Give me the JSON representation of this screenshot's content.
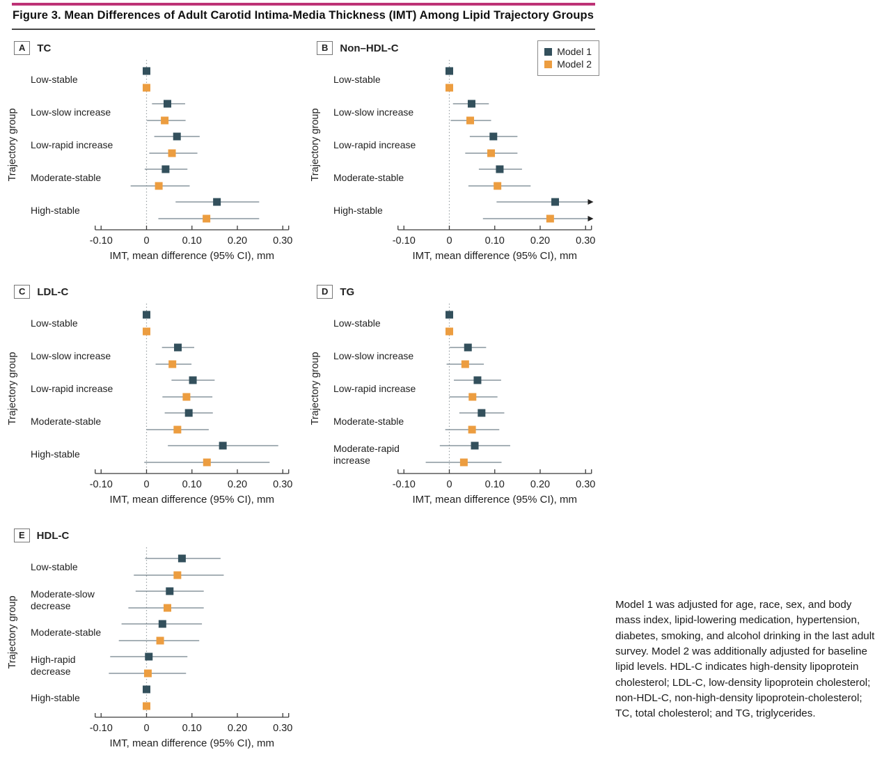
{
  "figure": {
    "title": "Figure 3. Mean Differences of Adult Carotid Intima-Media Thickness (IMT) Among Lipid Trajectory Groups",
    "caption": "Model 1 was adjusted for age, race, sex, and body mass index, lipid-lowering medication, hypertension, diabetes, smoking, and alcohol drinking in the last adult survey. Model 2 was additionally adjusted for baseline lipid levels. HDL-C indicates high-density lipoprotein cholesterol; LDL-C, low-density lipoprotein cholesterol; non-HDL-C, non-high-density lipoprotein-cholesterol; TC, total cholesterol; and TG, triglycerides.",
    "accent_color": "#bd3276"
  },
  "legend": {
    "items": [
      {
        "label": "Model 1",
        "color": "#33505c"
      },
      {
        "label": "Model 2",
        "color": "#ec9d40"
      }
    ]
  },
  "axis": {
    "xlabel": "IMT, mean difference (95% CI), mm",
    "ylabel": "Trajectory group",
    "xlim": [
      -0.13,
      0.33
    ],
    "ticks": [
      {
        "v": -0.1,
        "label": "-0.10"
      },
      {
        "v": 0.0,
        "label": "0"
      },
      {
        "v": 0.1,
        "label": "0.10"
      },
      {
        "v": 0.2,
        "label": "0.20"
      },
      {
        "v": 0.3,
        "label": "0.30"
      }
    ],
    "zero_line": "dotted"
  },
  "chart_data": [
    {
      "type": "scatter",
      "subtype": "forest",
      "panel_letter": "A",
      "title": "TC",
      "has_legend": false,
      "categories": [
        "Low-stable",
        "Low-slow increase",
        "Low-rapid increase",
        "Moderate-stable",
        "High-stable"
      ],
      "series": [
        {
          "name": "Model 1",
          "color": "#33505c",
          "points": [
            {
              "v": 0,
              "lo": null,
              "hi": null
            },
            {
              "v": 0.046,
              "lo": 0.012,
              "hi": 0.085
            },
            {
              "v": 0.067,
              "lo": 0.017,
              "hi": 0.117
            },
            {
              "v": 0.042,
              "lo": -0.004,
              "hi": 0.09
            },
            {
              "v": 0.155,
              "lo": 0.064,
              "hi": 0.248
            }
          ]
        },
        {
          "name": "Model 2",
          "color": "#ec9d40",
          "points": [
            {
              "v": 0,
              "lo": null,
              "hi": null
            },
            {
              "v": 0.04,
              "lo": 0.001,
              "hi": 0.086
            },
            {
              "v": 0.056,
              "lo": 0.006,
              "hi": 0.112
            },
            {
              "v": 0.027,
              "lo": -0.035,
              "hi": 0.095
            },
            {
              "v": 0.132,
              "lo": 0.026,
              "hi": 0.248
            }
          ]
        }
      ]
    },
    {
      "type": "scatter",
      "subtype": "forest",
      "panel_letter": "B",
      "title": "Non–HDL-C",
      "has_legend": true,
      "categories": [
        "Low-stable",
        "Low-slow increase",
        "Low-rapid increase",
        "Moderate-stable",
        "High-stable"
      ],
      "series": [
        {
          "name": "Model 1",
          "color": "#33505c",
          "points": [
            {
              "v": 0,
              "lo": null,
              "hi": null
            },
            {
              "v": 0.049,
              "lo": 0.008,
              "hi": 0.087
            },
            {
              "v": 0.097,
              "lo": 0.045,
              "hi": 0.15
            },
            {
              "v": 0.111,
              "lo": 0.065,
              "hi": 0.16
            },
            {
              "v": 0.233,
              "lo": 0.104,
              "hi": 0.312,
              "arrow": true
            }
          ]
        },
        {
          "name": "Model 2",
          "color": "#ec9d40",
          "points": [
            {
              "v": 0,
              "lo": null,
              "hi": null
            },
            {
              "v": 0.046,
              "lo": 0.003,
              "hi": 0.092
            },
            {
              "v": 0.092,
              "lo": 0.035,
              "hi": 0.15
            },
            {
              "v": 0.106,
              "lo": 0.042,
              "hi": 0.179
            },
            {
              "v": 0.222,
              "lo": 0.074,
              "hi": 0.312,
              "arrow": true
            }
          ]
        }
      ]
    },
    {
      "type": "scatter",
      "subtype": "forest",
      "panel_letter": "C",
      "title": "LDL-C",
      "has_legend": false,
      "categories": [
        "Low-stable",
        "Low-slow increase",
        "Low-rapid increase",
        "Moderate-stable",
        "High-stable"
      ],
      "series": [
        {
          "name": "Model 1",
          "color": "#33505c",
          "points": [
            {
              "v": 0,
              "lo": null,
              "hi": null
            },
            {
              "v": 0.069,
              "lo": 0.034,
              "hi": 0.105
            },
            {
              "v": 0.102,
              "lo": 0.055,
              "hi": 0.15
            },
            {
              "v": 0.093,
              "lo": 0.04,
              "hi": 0.146
            },
            {
              "v": 0.168,
              "lo": 0.047,
              "hi": 0.29
            }
          ]
        },
        {
          "name": "Model 2",
          "color": "#ec9d40",
          "points": [
            {
              "v": 0,
              "lo": null,
              "hi": null
            },
            {
              "v": 0.057,
              "lo": 0.02,
              "hi": 0.099
            },
            {
              "v": 0.088,
              "lo": 0.035,
              "hi": 0.145
            },
            {
              "v": 0.068,
              "lo": 0.0,
              "hi": 0.137
            },
            {
              "v": 0.133,
              "lo": -0.005,
              "hi": 0.271
            }
          ]
        }
      ]
    },
    {
      "type": "scatter",
      "subtype": "forest",
      "panel_letter": "D",
      "title": "TG",
      "has_legend": false,
      "categories": [
        "Low-stable",
        "Low-slow increase",
        "Low-rapid increase",
        "Moderate-stable",
        "Moderate-rapid\nincrease"
      ],
      "series": [
        {
          "name": "Model 1",
          "color": "#33505c",
          "points": [
            {
              "v": 0,
              "lo": null,
              "hi": null
            },
            {
              "v": 0.041,
              "lo": 0.001,
              "hi": 0.081
            },
            {
              "v": 0.062,
              "lo": 0.01,
              "hi": 0.114
            },
            {
              "v": 0.071,
              "lo": 0.022,
              "hi": 0.121
            },
            {
              "v": 0.056,
              "lo": -0.021,
              "hi": 0.134
            }
          ]
        },
        {
          "name": "Model 2",
          "color": "#ec9d40",
          "points": [
            {
              "v": 0,
              "lo": null,
              "hi": null
            },
            {
              "v": 0.035,
              "lo": -0.006,
              "hi": 0.076
            },
            {
              "v": 0.051,
              "lo": 0.0,
              "hi": 0.106
            },
            {
              "v": 0.05,
              "lo": -0.009,
              "hi": 0.11
            },
            {
              "v": 0.032,
              "lo": -0.052,
              "hi": 0.115
            }
          ]
        }
      ]
    },
    {
      "type": "scatter",
      "subtype": "forest",
      "panel_letter": "E",
      "title": "HDL-C",
      "has_legend": false,
      "categories": [
        "Low-stable",
        "Moderate-slow\ndecrease",
        "Moderate-stable",
        "High-rapid\ndecrease",
        "High-stable"
      ],
      "series": [
        {
          "name": "Model 1",
          "color": "#33505c",
          "points": [
            {
              "v": 0.078,
              "lo": -0.003,
              "hi": 0.163
            },
            {
              "v": 0.051,
              "lo": -0.024,
              "hi": 0.126
            },
            {
              "v": 0.035,
              "lo": -0.055,
              "hi": 0.122
            },
            {
              "v": 0.005,
              "lo": -0.08,
              "hi": 0.09
            },
            {
              "v": 0,
              "lo": null,
              "hi": null
            }
          ]
        },
        {
          "name": "Model 2",
          "color": "#ec9d40",
          "points": [
            {
              "v": 0.068,
              "lo": -0.028,
              "hi": 0.17
            },
            {
              "v": 0.046,
              "lo": -0.04,
              "hi": 0.126
            },
            {
              "v": 0.03,
              "lo": -0.061,
              "hi": 0.116
            },
            {
              "v": 0.003,
              "lo": -0.083,
              "hi": 0.087
            },
            {
              "v": 0,
              "lo": null,
              "hi": null
            }
          ]
        }
      ]
    }
  ]
}
